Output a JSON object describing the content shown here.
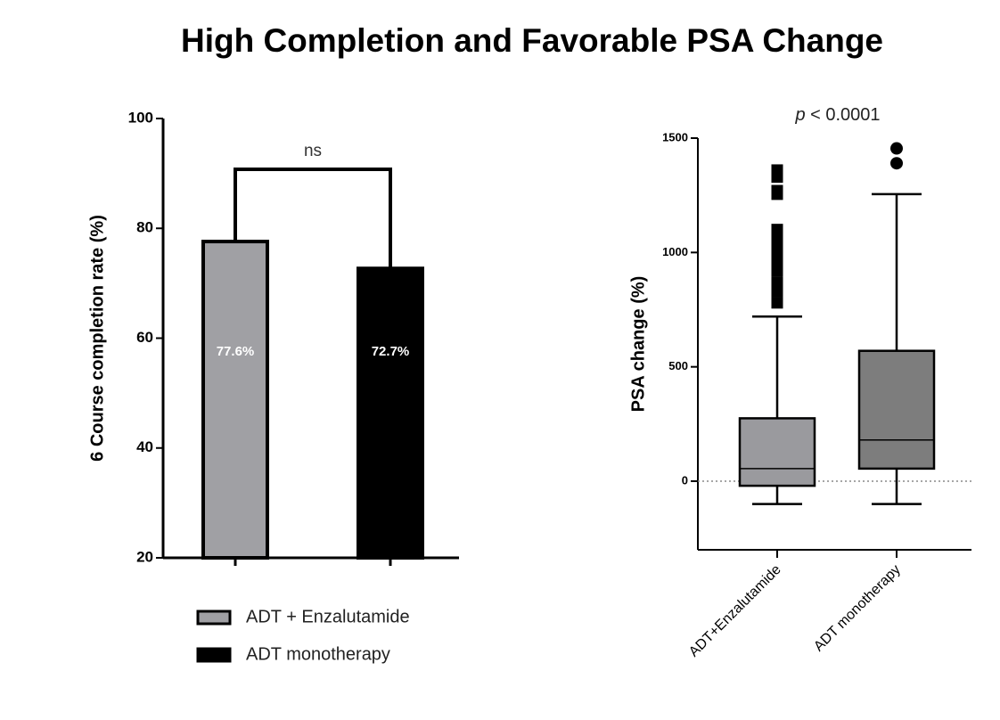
{
  "title": "High Completion and Favorable PSA Change",
  "chart_data": [
    {
      "type": "bar",
      "y_label": "6 Course completion rate (%)",
      "categories": [
        null,
        null
      ],
      "series": [
        {
          "name": "ADT + Enzalutamide",
          "color": "#a0a0a4",
          "values": [
            77.6,
            null
          ],
          "value_labels": [
            "77.6%",
            null
          ]
        },
        {
          "name": "ADT monotherapy",
          "color": "#000000",
          "values": [
            null,
            72.7
          ],
          "value_labels": [
            null,
            "72.7%"
          ]
        }
      ],
      "annotation": "ns",
      "ylim": [
        20,
        100
      ],
      "yticks": [
        20,
        40,
        60,
        80,
        100
      ],
      "grid": false,
      "legend": "bottom"
    },
    {
      "type": "box",
      "y_label": "PSA change (%)",
      "annotation": "p < 0.0001",
      "categories": [
        "ADT+Enzalutamide",
        "ADT monotherapy"
      ],
      "boxes": [
        {
          "whisker_low": -100,
          "q1": -20,
          "median": 55,
          "q3": 275,
          "whisker_high": 720,
          "color": "#9a9a9e",
          "marker": "square",
          "outliers": [
            1360,
            1330,
            1270,
            1255,
            1100,
            1050,
            1030,
            1000,
            980,
            950,
            940,
            920,
            870,
            830,
            780
          ]
        },
        {
          "whisker_low": -100,
          "q1": 55,
          "median": 180,
          "q3": 570,
          "whisker_high": 1255,
          "color": "#7d7d7d",
          "marker": "circle",
          "outliers": [
            1455,
            1390
          ]
        }
      ],
      "hline": 0,
      "ylim": [
        -300,
        1500
      ],
      "yticks": [
        0,
        500,
        1000,
        1500
      ],
      "grid": false
    }
  ]
}
